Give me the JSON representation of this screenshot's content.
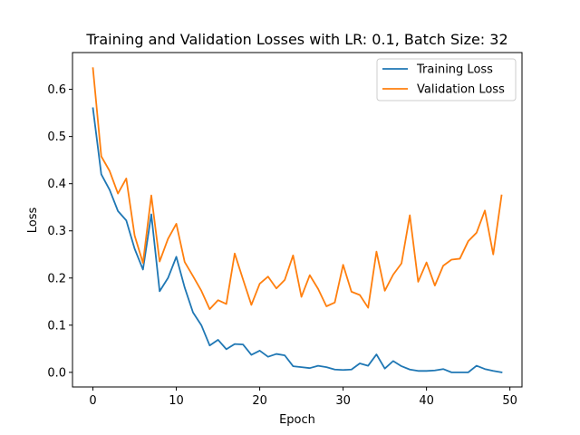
{
  "chart_data": {
    "type": "line",
    "title": "Training and Validation Losses with LR: 0.1, Batch Size: 32",
    "xlabel": "Epoch",
    "ylabel": "Loss",
    "xlim": [
      -2.45,
      51.45
    ],
    "ylim": [
      -0.031,
      0.678
    ],
    "xticks": [
      0,
      10,
      20,
      30,
      40,
      50
    ],
    "yticks": [
      0.0,
      0.1,
      0.2,
      0.3,
      0.4,
      0.5,
      0.6
    ],
    "ytick_labels": [
      "0.0",
      "0.1",
      "0.2",
      "0.3",
      "0.4",
      "0.5",
      "0.6"
    ],
    "grid": false,
    "legend_position": "upper right",
    "x": [
      0,
      1,
      2,
      3,
      4,
      5,
      6,
      7,
      8,
      9,
      10,
      11,
      12,
      13,
      14,
      15,
      16,
      17,
      18,
      19,
      20,
      21,
      22,
      23,
      24,
      25,
      26,
      27,
      28,
      29,
      30,
      31,
      32,
      33,
      34,
      35,
      36,
      37,
      38,
      39,
      40,
      41,
      42,
      43,
      44,
      45,
      46,
      47,
      48,
      49
    ],
    "series": [
      {
        "name": "Training Loss",
        "color": "#1f77b4",
        "values": [
          0.56,
          0.42,
          0.387,
          0.342,
          0.322,
          0.262,
          0.218,
          0.335,
          0.172,
          0.2,
          0.245,
          0.18,
          0.127,
          0.1,
          0.057,
          0.069,
          0.049,
          0.06,
          0.059,
          0.037,
          0.046,
          0.033,
          0.039,
          0.036,
          0.013,
          0.011,
          0.009,
          0.014,
          0.011,
          0.006,
          0.005,
          0.006,
          0.019,
          0.014,
          0.038,
          0.008,
          0.024,
          0.013,
          0.006,
          0.003,
          0.003,
          0.004,
          0.007,
          0.0,
          0.0,
          0.0,
          0.014,
          0.007,
          0.003,
          0.0
        ]
      },
      {
        "name": "Validation Loss",
        "color": "#ff7f0e",
        "values": [
          0.645,
          0.458,
          0.427,
          0.379,
          0.411,
          0.29,
          0.232,
          0.375,
          0.235,
          0.283,
          0.315,
          0.234,
          0.204,
          0.173,
          0.134,
          0.153,
          0.145,
          0.252,
          0.197,
          0.143,
          0.188,
          0.203,
          0.178,
          0.196,
          0.248,
          0.16,
          0.206,
          0.177,
          0.14,
          0.148,
          0.228,
          0.171,
          0.164,
          0.137,
          0.256,
          0.173,
          0.207,
          0.231,
          0.333,
          0.192,
          0.233,
          0.184,
          0.226,
          0.239,
          0.241,
          0.278,
          0.296,
          0.343,
          0.25,
          0.375
        ]
      }
    ]
  }
}
